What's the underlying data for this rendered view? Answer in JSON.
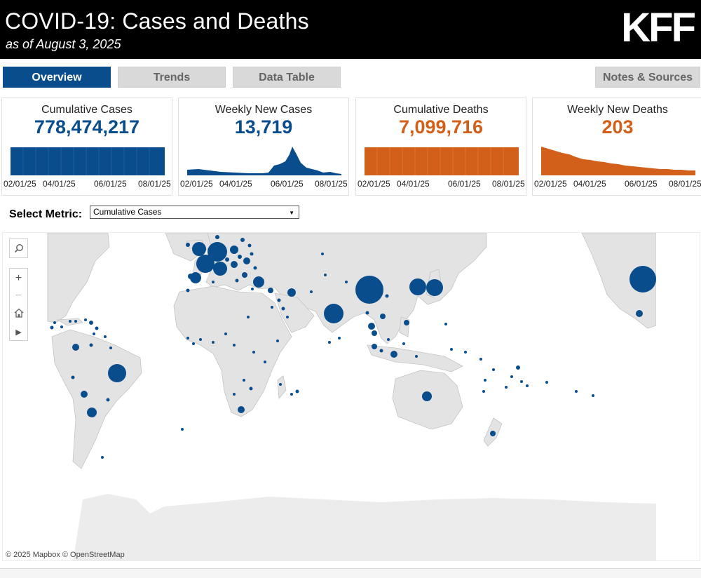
{
  "header": {
    "title": "COVID-19: Cases and Deaths",
    "subtitle": "as of August 3, 2025",
    "logo": "KFF"
  },
  "tabs": [
    {
      "label": "Overview",
      "active": true
    },
    {
      "label": "Trends",
      "active": false
    },
    {
      "label": "Data Table",
      "active": false
    },
    {
      "label": "Notes & Sources",
      "active": false
    }
  ],
  "cards": [
    {
      "label": "Cumulative Cases",
      "value": "778,474,217",
      "color": "#0a4d8c",
      "ticks": [
        "02/01/25",
        "04/01/25",
        "06/01/25",
        "08/01/25"
      ]
    },
    {
      "label": "Weekly New Cases",
      "value": "13,719",
      "color": "#0a4d8c",
      "ticks": [
        "02/01/25",
        "04/01/25",
        "06/01/25",
        "08/01/25"
      ]
    },
    {
      "label": "Cumulative Deaths",
      "value": "7,099,716",
      "color": "#d2601a",
      "ticks": [
        "02/01/25",
        "04/01/25",
        "06/01/25",
        "08/01/25"
      ]
    },
    {
      "label": "Weekly New Deaths",
      "value": "203",
      "color": "#d2601a",
      "ticks": [
        "02/01/25",
        "04/01/25",
        "06/01/25",
        "08/01/25"
      ]
    }
  ],
  "metric": {
    "label": "Select Metric:",
    "selected": "Cumulative Cases"
  },
  "map": {
    "attribution": "© 2025 Mapbox  © OpenStreetMap",
    "bubble_color": "#0a4d8c",
    "land_color": "#e3e3e3"
  },
  "icons": {
    "search": "search-icon",
    "zoom_in": "plus-icon",
    "zoom_out": "minus-icon",
    "home": "home-icon",
    "pan": "play-icon"
  }
}
